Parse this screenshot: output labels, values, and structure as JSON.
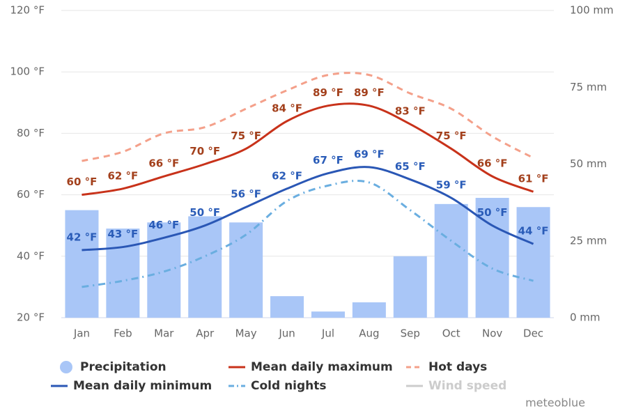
{
  "chart_data": {
    "type": "combo",
    "categories": [
      "Jan",
      "Feb",
      "Mar",
      "Apr",
      "May",
      "Jun",
      "Jul",
      "Aug",
      "Sep",
      "Oct",
      "Nov",
      "Dec"
    ],
    "ylim": [
      20,
      120
    ],
    "yticks": [
      {
        "value": 20,
        "label": "20 °F"
      },
      {
        "value": 40,
        "label": "40 °F"
      },
      {
        "value": 60,
        "label": "60 °F"
      },
      {
        "value": 80,
        "label": "80 °F"
      },
      {
        "value": 100,
        "label": "100 °F"
      },
      {
        "value": 120,
        "label": "120 °F"
      }
    ],
    "y2lim": [
      0,
      100
    ],
    "y2ticks": [
      {
        "value": 0,
        "label": "0 mm"
      },
      {
        "value": 25,
        "label": "25 mm"
      },
      {
        "value": 50,
        "label": "50 mm"
      },
      {
        "value": 75,
        "label": "75 mm"
      },
      {
        "value": 100,
        "label": "100 mm"
      }
    ],
    "grid": true,
    "series": [
      {
        "name": "Precipitation",
        "type": "bar",
        "axis": "y2",
        "color": "#a9c6f7",
        "values": [
          35,
          29,
          31,
          33,
          31,
          7,
          2,
          5,
          20,
          37,
          39,
          36
        ]
      },
      {
        "name": "Mean daily maximum",
        "type": "line",
        "color": "#c8321a",
        "dash": "solid",
        "values": [
          60,
          62,
          66,
          70,
          75,
          84,
          89,
          89,
          83,
          75,
          66,
          61
        ],
        "value_labels": [
          "60 °F",
          "62 °F",
          "66 °F",
          "70 °F",
          "75 °F",
          "84 °F",
          "89 °F",
          "89 °F",
          "83 °F",
          "75 °F",
          "66 °F",
          "61 °F"
        ],
        "label_color": "#a3401c"
      },
      {
        "name": "Hot days",
        "type": "line",
        "color": "#f4a08a",
        "dash": "dashed",
        "values": [
          71,
          74,
          80,
          82,
          88,
          94,
          99,
          99,
          93,
          88,
          79,
          72
        ]
      },
      {
        "name": "Mean daily minimum",
        "type": "line",
        "color": "#2a57b5",
        "dash": "solid",
        "values": [
          42,
          43,
          46,
          50,
          56,
          62,
          67,
          69,
          65,
          59,
          50,
          44
        ],
        "value_labels": [
          "42 °F",
          "43 °F",
          "46 °F",
          "50 °F",
          "56 °F",
          "62 °F",
          "67 °F",
          "69 °F",
          "65 °F",
          "59 °F",
          "50 °F",
          "44 °F"
        ],
        "label_color": "#2a5cb8"
      },
      {
        "name": "Cold nights",
        "type": "line",
        "color": "#6aaee0",
        "dash": "dashdot",
        "values": [
          30,
          32,
          35,
          40,
          47,
          58,
          63,
          64,
          55,
          45,
          36,
          32
        ]
      },
      {
        "name": "Wind speed",
        "type": "line",
        "color": "#cccccc",
        "visible": false
      }
    ],
    "credit": "meteoblue"
  }
}
